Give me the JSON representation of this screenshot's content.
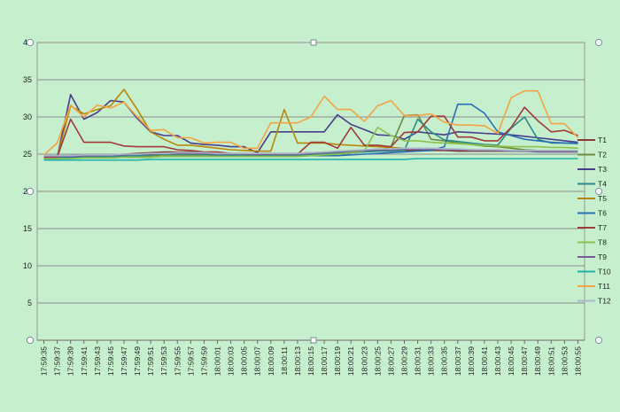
{
  "chart_data": {
    "type": "line",
    "title": "",
    "xlabel": "",
    "ylabel": "",
    "ylim": [
      0,
      40
    ],
    "yticks": [
      0,
      5,
      10,
      15,
      20,
      25,
      30,
      35,
      40
    ],
    "grid": "horizontal",
    "legend_position": "right",
    "x": [
      "17:59:35",
      "17:59:37",
      "17:59:39",
      "17:59:41",
      "17:59:43",
      "17:59:45",
      "17:59:47",
      "17:59:49",
      "17:59:51",
      "17:59:53",
      "17:59:55",
      "17:59:57",
      "17:59:59",
      "18:00:01",
      "18:00:03",
      "18:00:05",
      "18:00:07",
      "18:00:09",
      "18:00:11",
      "18:00:13",
      "18:00:15",
      "18:00:17",
      "18:00:19",
      "18:00:21",
      "18:00:23",
      "18:00:25",
      "18:00:27",
      "18:00:29",
      "18:00:31",
      "18:00:33",
      "18:00:35",
      "18:00:37",
      "18:00:39",
      "18:00:41",
      "18:00:43",
      "18:00:45",
      "18:00:47",
      "18:00:49",
      "18:00:51",
      "18:00:53",
      "18:00:55"
    ],
    "series": [
      {
        "name": "T1",
        "color": "#8b3a3a",
        "values": [
          24.6,
          24.6,
          24.8,
          24.8,
          24.8,
          24.9,
          25.0,
          25.1,
          25.2,
          25.3,
          25.3,
          25.3,
          25.2,
          25.1,
          25.1,
          25.1,
          25.1,
          25.1,
          25.1,
          25.1,
          25.2,
          25.2,
          25.3,
          25.3,
          25.4,
          25.4,
          25.5,
          25.5,
          25.5,
          25.5,
          25.5,
          25.4,
          25.4,
          25.4,
          25.4,
          25.4,
          25.4,
          25.4,
          25.4,
          25.4,
          25.4
        ]
      },
      {
        "name": "T2",
        "color": "#6e8b3d",
        "values": [
          24.5,
          24.5,
          24.6,
          24.6,
          24.6,
          24.7,
          24.7,
          24.8,
          24.8,
          24.9,
          24.9,
          24.9,
          24.9,
          24.8,
          24.8,
          24.8,
          24.8,
          24.8,
          24.8,
          24.8,
          24.9,
          25.0,
          25.1,
          25.2,
          25.3,
          25.4,
          26.0,
          30.2,
          30.3,
          27.0,
          26.8,
          26.5,
          26.3,
          26.1,
          26.0,
          25.8,
          25.6,
          25.5,
          25.5,
          25.4,
          25.4
        ]
      },
      {
        "name": "T3",
        "color": "#483d8b",
        "values": [
          24.6,
          24.6,
          33.0,
          29.7,
          30.6,
          32.2,
          32.0,
          29.8,
          28.0,
          27.5,
          27.5,
          26.5,
          26.3,
          26.2,
          26.0,
          26.0,
          25.2,
          28.0,
          28.0,
          28.0,
          28.0,
          28.0,
          30.3,
          29.0,
          28.3,
          27.6,
          27.5,
          27.0,
          28.0,
          27.8,
          27.6,
          28.0,
          27.9,
          27.8,
          27.7,
          27.6,
          27.4,
          27.2,
          27.0,
          26.8,
          26.6
        ]
      },
      {
        "name": "T4",
        "color": "#2e8b8b",
        "values": [
          24.6,
          24.6,
          24.6,
          24.6,
          24.7,
          24.7,
          24.8,
          24.8,
          24.9,
          25.0,
          25.0,
          25.0,
          25.0,
          24.9,
          24.9,
          24.9,
          24.9,
          24.9,
          24.9,
          24.9,
          24.9,
          25.0,
          25.1,
          25.2,
          25.3,
          25.4,
          25.4,
          25.5,
          29.7,
          28.0,
          26.9,
          26.7,
          26.5,
          26.3,
          26.2,
          28.5,
          30.0,
          27.0,
          26.5,
          26.5,
          26.4
        ]
      },
      {
        "name": "T5",
        "color": "#b8860b",
        "values": [
          24.6,
          24.6,
          31.5,
          30.4,
          31.0,
          31.5,
          33.7,
          31.0,
          28.0,
          27.0,
          26.2,
          26.2,
          26.0,
          25.8,
          25.6,
          25.5,
          25.4,
          25.4,
          31.0,
          26.5,
          26.5,
          26.5,
          26.3,
          26.2,
          26.1,
          26.0,
          25.9,
          25.8,
          25.8,
          25.7,
          25.7,
          25.6,
          25.6,
          25.5,
          25.5,
          25.5,
          25.5,
          25.5,
          25.5,
          25.5,
          25.5
        ]
      },
      {
        "name": "T6",
        "color": "#2a6fb4",
        "values": [
          24.4,
          24.4,
          24.5,
          24.5,
          24.5,
          24.5,
          24.6,
          24.6,
          24.6,
          24.7,
          24.7,
          24.7,
          24.7,
          24.7,
          24.7,
          24.7,
          24.7,
          24.7,
          24.7,
          24.7,
          24.8,
          24.8,
          24.8,
          24.9,
          25.0,
          25.1,
          25.2,
          25.3,
          25.4,
          25.5,
          26.0,
          31.7,
          31.7,
          30.5,
          28.0,
          27.5,
          27.0,
          26.8,
          26.6,
          26.5,
          26.5
        ]
      },
      {
        "name": "T7",
        "color": "#a0393a",
        "values": [
          24.6,
          24.6,
          29.7,
          26.6,
          26.6,
          26.6,
          26.1,
          26.0,
          26.0,
          26.0,
          25.6,
          25.5,
          25.3,
          25.3,
          25.1,
          25.0,
          25.0,
          25.0,
          25.0,
          25.0,
          26.6,
          26.6,
          25.8,
          28.6,
          26.2,
          26.2,
          26.0,
          27.9,
          28.0,
          30.1,
          30.1,
          27.3,
          27.3,
          26.8,
          26.8,
          28.6,
          31.3,
          29.5,
          28.0,
          28.2,
          27.5
        ]
      },
      {
        "name": "T8",
        "color": "#8bc34a",
        "values": [
          24.4,
          24.4,
          24.4,
          24.5,
          24.5,
          24.5,
          24.6,
          24.6,
          24.6,
          24.7,
          24.7,
          24.7,
          24.7,
          24.7,
          24.7,
          24.7,
          24.7,
          24.7,
          24.7,
          24.7,
          24.8,
          24.9,
          25.0,
          25.2,
          25.4,
          28.6,
          27.5,
          26.8,
          26.8,
          26.6,
          26.5,
          26.4,
          26.3,
          26.2,
          26.1,
          26.0,
          26.0,
          26.0,
          25.9,
          25.9,
          25.8
        ]
      },
      {
        "name": "T9",
        "color": "#7a5a9e",
        "values": [
          24.7,
          24.7,
          24.7,
          24.8,
          24.8,
          24.9,
          24.9,
          25.0,
          25.0,
          25.1,
          25.1,
          25.1,
          25.1,
          25.0,
          25.0,
          25.0,
          25.0,
          25.0,
          25.0,
          25.0,
          25.1,
          25.2,
          25.3,
          25.4,
          25.5,
          25.6,
          25.6,
          25.7,
          25.7,
          25.7,
          25.6,
          25.6,
          25.5,
          25.5,
          25.5,
          25.4,
          25.4,
          25.3,
          25.3,
          25.3,
          25.3
        ]
      },
      {
        "name": "T10",
        "color": "#20b2aa",
        "values": [
          24.2,
          24.2,
          24.2,
          24.2,
          24.2,
          24.2,
          24.2,
          24.2,
          24.3,
          24.3,
          24.3,
          24.3,
          24.3,
          24.3,
          24.3,
          24.3,
          24.3,
          24.3,
          24.3,
          24.3,
          24.3,
          24.3,
          24.3,
          24.3,
          24.3,
          24.3,
          24.3,
          24.3,
          24.4,
          24.4,
          24.4,
          24.4,
          24.4,
          24.4,
          24.4,
          24.4,
          24.4,
          24.4,
          24.4,
          24.4,
          24.4
        ]
      },
      {
        "name": "T11",
        "color": "#f4a442",
        "values": [
          24.9,
          26.5,
          31.6,
          30.0,
          31.6,
          31.2,
          32.0,
          30.0,
          28.2,
          28.3,
          27.2,
          27.2,
          26.5,
          26.6,
          26.6,
          25.8,
          25.8,
          29.2,
          29.2,
          29.2,
          30.0,
          32.8,
          31.0,
          31.0,
          29.4,
          31.5,
          32.2,
          30.2,
          30.2,
          30.4,
          29.3,
          28.9,
          28.9,
          28.8,
          27.8,
          32.6,
          33.5,
          33.5,
          29.1,
          29.1,
          27.2
        ]
      },
      {
        "name": "T12",
        "color": "#a9b8c8",
        "values": [
          24.8,
          24.8,
          24.8,
          24.9,
          24.9,
          24.9,
          25.0,
          25.0,
          25.1,
          25.1,
          25.2,
          25.2,
          25.2,
          25.1,
          25.1,
          25.1,
          25.1,
          25.1,
          25.1,
          25.1,
          25.2,
          25.3,
          25.4,
          25.5,
          25.6,
          25.7,
          25.7,
          25.8,
          25.8,
          25.8,
          25.7,
          25.7,
          25.6,
          25.6,
          25.6,
          25.5,
          25.5,
          25.5,
          25.5,
          25.5,
          25.5
        ]
      }
    ]
  }
}
